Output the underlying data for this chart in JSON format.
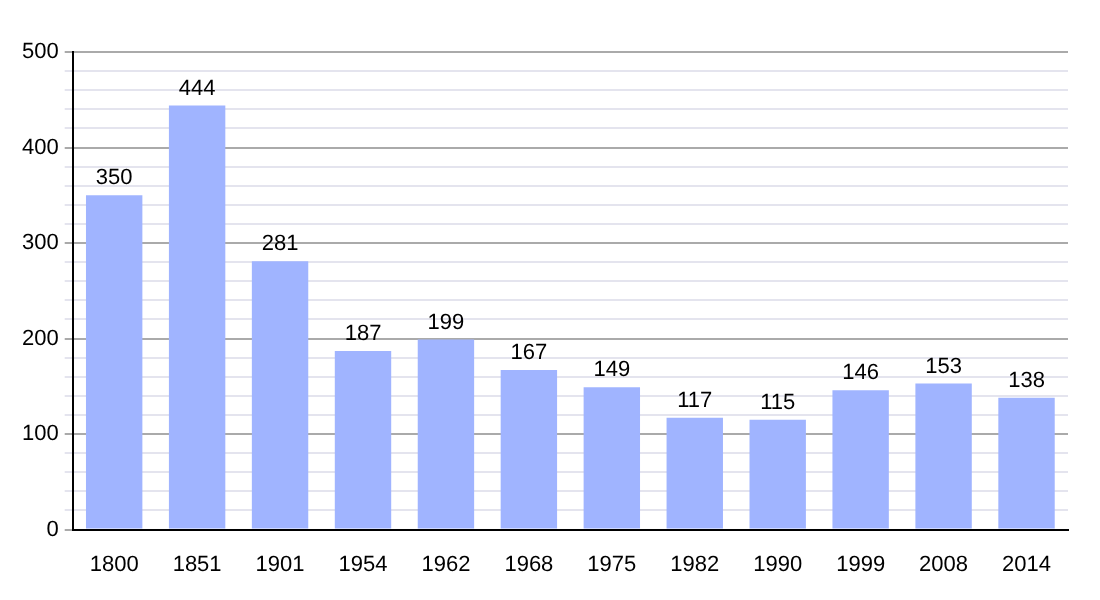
{
  "chart_data": {
    "type": "bar",
    "categories": [
      "1800",
      "1851",
      "1901",
      "1954",
      "1962",
      "1968",
      "1975",
      "1982",
      "1990",
      "1999",
      "2008",
      "2014"
    ],
    "values": [
      350,
      444,
      281,
      187,
      199,
      167,
      149,
      117,
      115,
      146,
      153,
      138
    ],
    "color": "#a0b4ff",
    "data_labels": true,
    "grid": "y",
    "ylim": [
      0,
      500
    ],
    "yticks": [
      0,
      {
        "value": 20,
        "label": null
      },
      {
        "value": 40,
        "label": null
      },
      {
        "value": 60,
        "label": null
      },
      {
        "value": 80,
        "label": null
      },
      100,
      {
        "value": 120,
        "label": null
      },
      {
        "value": 140,
        "label": null
      },
      {
        "value": 160,
        "label": null
      },
      {
        "value": 180,
        "label": null
      },
      200,
      {
        "value": 220,
        "label": null
      },
      {
        "value": 240,
        "label": null
      },
      {
        "value": 260,
        "label": null
      },
      {
        "value": 280,
        "label": null
      },
      300,
      {
        "value": 320,
        "label": null
      },
      {
        "value": 340,
        "label": null
      },
      {
        "value": 360,
        "label": null
      },
      {
        "value": 380,
        "label": null
      },
      400,
      {
        "value": 420,
        "label": null
      },
      {
        "value": 440,
        "label": null
      },
      {
        "value": 460,
        "label": null
      },
      {
        "value": 480,
        "label": null
      },
      500
    ]
  }
}
